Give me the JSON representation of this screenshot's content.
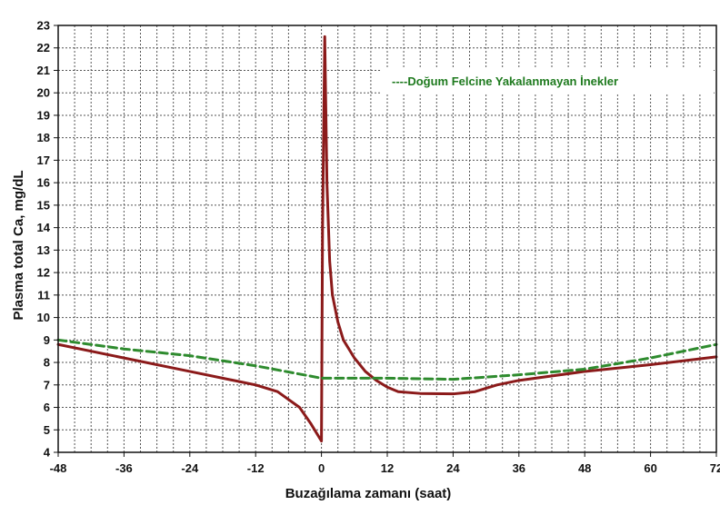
{
  "chart_data": {
    "type": "line",
    "title": "",
    "xlabel": "Buzağılama zamanı (saat)",
    "ylabel": "Plasma total Ca, mg/dL",
    "xlim": [
      -48,
      72
    ],
    "ylim": [
      4,
      23
    ],
    "x_ticks": [
      -48,
      -36,
      -24,
      -12,
      0,
      12,
      24,
      36,
      48,
      60,
      72
    ],
    "y_ticks": [
      4,
      5,
      6,
      7,
      8,
      9,
      10,
      11,
      12,
      13,
      14,
      15,
      16,
      17,
      18,
      19,
      20,
      21,
      22,
      23
    ],
    "grid": true,
    "legend": {
      "placement": "upper-right",
      "entries": [
        "----Doğum Felcine Yakalanmayan İnekler"
      ]
    },
    "series": [
      {
        "name": "",
        "color": "#8b1a1a",
        "style": "solid",
        "x": [
          -48,
          -36,
          -24,
          -12,
          -8,
          -4,
          -2,
          0,
          0.2,
          0.6,
          1,
          1.5,
          2,
          3,
          4,
          6,
          8,
          10,
          12,
          14,
          18,
          24,
          28,
          32,
          36,
          48,
          60,
          72
        ],
        "y": [
          8.8,
          8.2,
          7.6,
          7.0,
          6.7,
          6.0,
          5.3,
          4.5,
          14.0,
          22.5,
          16.0,
          12.5,
          11.0,
          9.8,
          9.0,
          8.2,
          7.6,
          7.2,
          6.9,
          6.7,
          6.62,
          6.6,
          6.7,
          7.0,
          7.2,
          7.6,
          7.9,
          8.25
        ]
      },
      {
        "name": "Doğum Felcine Yakalanmayan İnekler",
        "color": "#2e8b2e",
        "style": "dashed",
        "x": [
          -48,
          -36,
          -24,
          -12,
          0,
          12,
          24,
          36,
          48,
          60,
          72
        ],
        "y": [
          9.0,
          8.6,
          8.3,
          7.85,
          7.3,
          7.3,
          7.25,
          7.45,
          7.7,
          8.2,
          8.8
        ]
      }
    ]
  }
}
